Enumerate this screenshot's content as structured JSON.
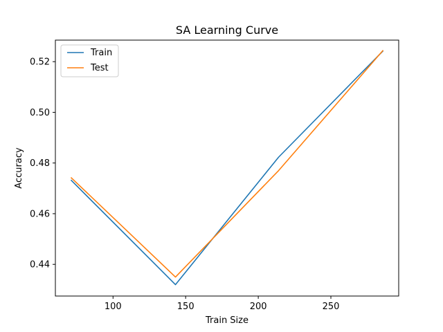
{
  "chart_data": {
    "type": "line",
    "title": "SA Learning Curve",
    "xlabel": "Train Size",
    "ylabel": "Accuracy",
    "xlim": [
      60.3,
      296.7
    ],
    "ylim": [
      0.4275,
      0.5285
    ],
    "xticks": [
      100,
      150,
      200,
      250
    ],
    "yticks": [
      0.44,
      0.46,
      0.48,
      0.5,
      0.52
    ],
    "x": [
      71,
      143,
      214,
      286
    ],
    "series": [
      {
        "name": "Train",
        "color": "#1f77b4",
        "values": [
          0.4733,
          0.432,
          0.4823,
          0.5243
        ]
      },
      {
        "name": "Test",
        "color": "#ff7f0e",
        "values": [
          0.4743,
          0.435,
          0.477,
          0.5245
        ]
      }
    ],
    "legend": "top-left",
    "grid": false
  }
}
